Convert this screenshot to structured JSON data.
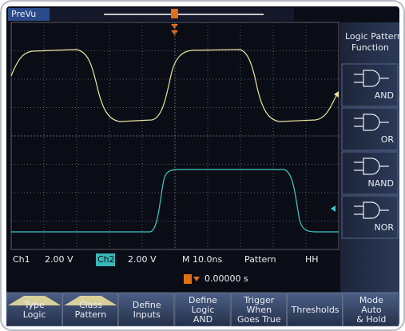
{
  "header": {
    "title": "PreVu"
  },
  "side_menu": {
    "title": [
      "Logic Pattern",
      "Function"
    ],
    "buttons": [
      "AND",
      "OR",
      "NAND",
      "NOR"
    ]
  },
  "status": {
    "ch1": "Ch1",
    "ch1_scale": "2.00 V",
    "ch2": "Ch2",
    "ch2_scale": "2.00 V",
    "timebase": "M 10.0ns",
    "trigger_type": "Pattern",
    "trigger_inputs": "HH",
    "trigger_position": "0.00000 s"
  },
  "bottom_menu": [
    [
      "Type",
      "Logic"
    ],
    [
      "Class",
      "Pattern"
    ],
    [
      "Define",
      "Inputs"
    ],
    [
      "Define",
      "Logic",
      "AND"
    ],
    [
      "Trigger",
      "When",
      "Goes True"
    ],
    [
      "Thresholds"
    ],
    [
      "Mode",
      "Auto",
      "& Hold"
    ]
  ]
}
